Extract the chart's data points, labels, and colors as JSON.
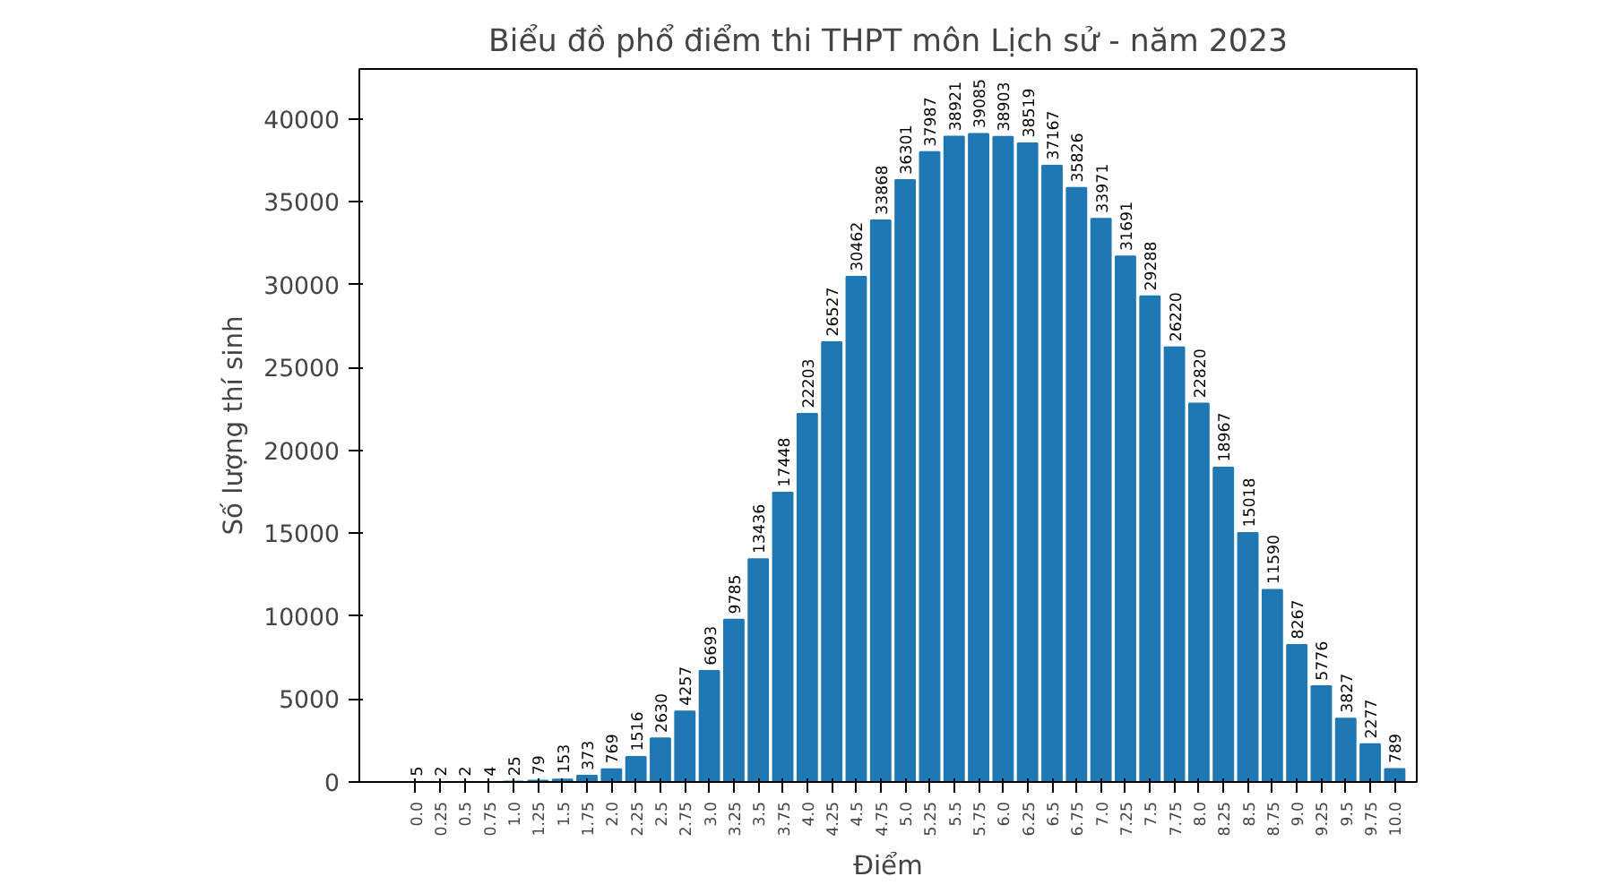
{
  "chart_data": {
    "type": "bar",
    "title": "Biểu đồ phổ điểm thi THPT môn Lịch sử - năm 2023",
    "xlabel": "Điểm",
    "ylabel": "Số lượng thí sinh",
    "categories": [
      "0.0",
      "0.25",
      "0.5",
      "0.75",
      "1.0",
      "1.25",
      "1.5",
      "1.75",
      "2.0",
      "2.25",
      "2.5",
      "2.75",
      "3.0",
      "3.25",
      "3.5",
      "3.75",
      "4.0",
      "4.25",
      "4.5",
      "4.75",
      "5.0",
      "5.25",
      "5.5",
      "5.75",
      "6.0",
      "6.25",
      "6.5",
      "6.75",
      "7.0",
      "7.25",
      "7.5",
      "7.75",
      "8.0",
      "8.25",
      "8.5",
      "8.75",
      "9.0",
      "9.25",
      "9.5",
      "9.75",
      "10.0"
    ],
    "values": [
      5,
      2,
      2,
      4,
      25,
      79,
      153,
      373,
      769,
      1516,
      2630,
      4257,
      6693,
      9785,
      13436,
      17448,
      22203,
      26527,
      30462,
      33868,
      36301,
      37987,
      38921,
      39085,
      38903,
      38519,
      37167,
      35826,
      33971,
      31691,
      29288,
      26220,
      22820,
      18967,
      15018,
      11590,
      8267,
      5776,
      3827,
      2277,
      789
    ],
    "color": "#1f77b4",
    "ylim": [
      0,
      43000
    ],
    "yticks": [
      0,
      5000,
      10000,
      15000,
      20000,
      25000,
      30000,
      35000,
      40000
    ],
    "grid": false,
    "data_labels": true
  }
}
